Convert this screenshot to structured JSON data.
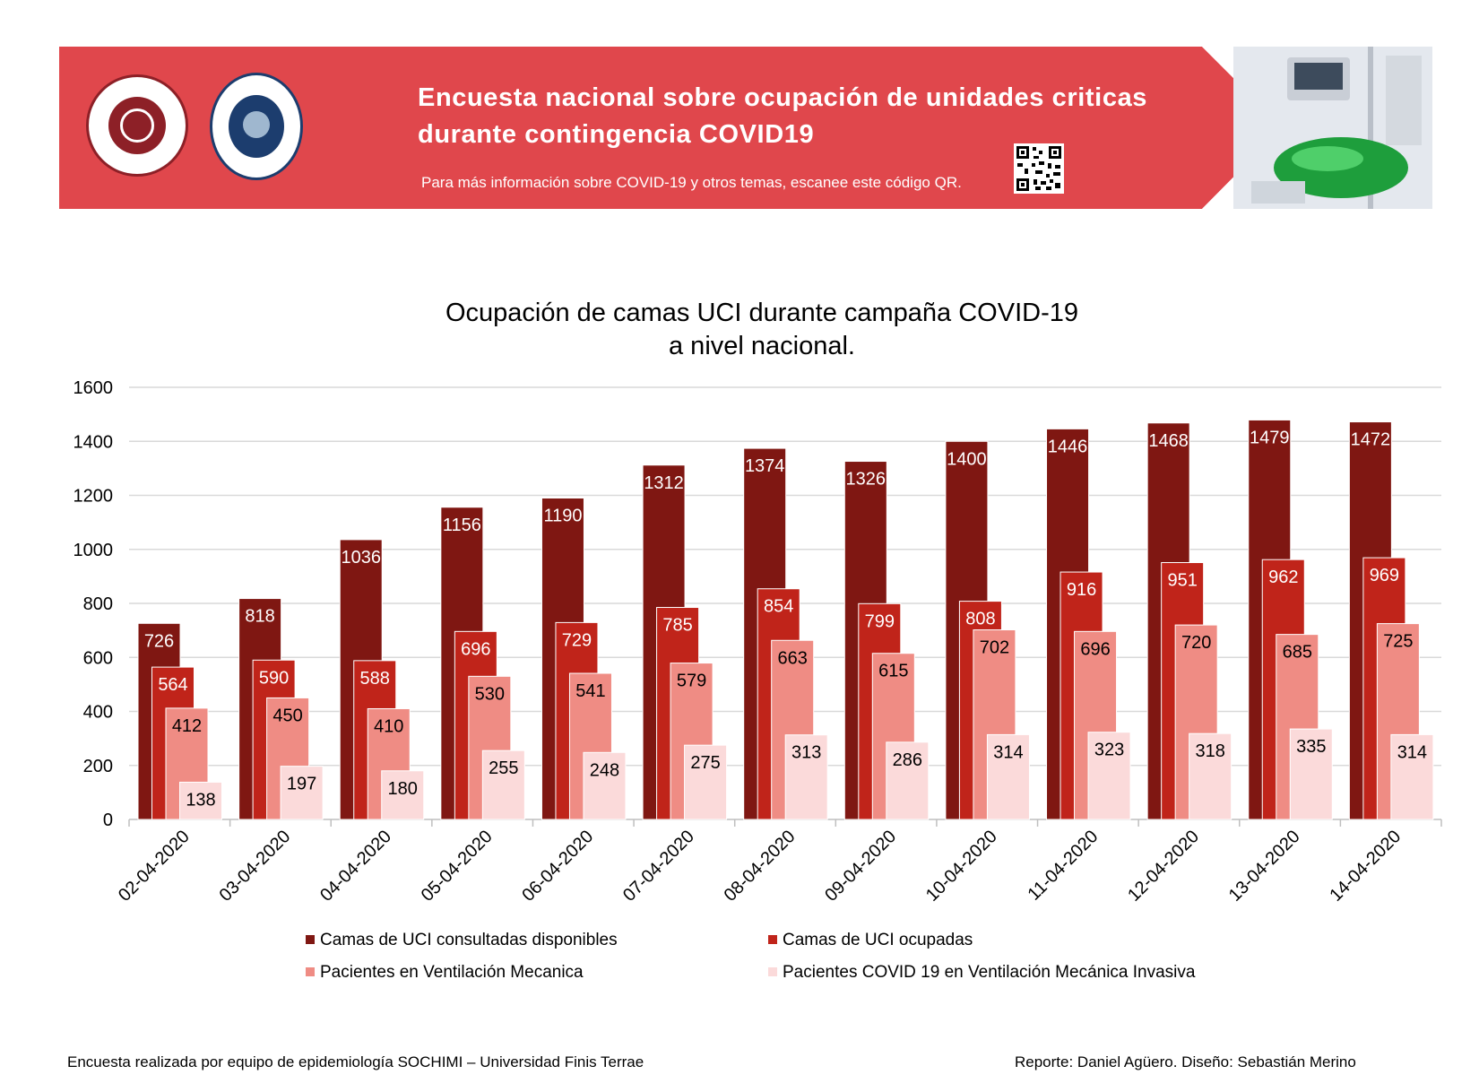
{
  "header": {
    "title_line1": "Encuesta nacional sobre ocupación de unidades criticas",
    "title_line2": "durante contingencia COVID19",
    "subtitle": "Para más información sobre COVID-19 y otros temas, escanee este código QR.",
    "color": "#e0474c"
  },
  "chart_data": {
    "type": "bar",
    "title": "Ocupación de camas UCI durante campaña COVID-19",
    "title_line2": "a nivel nacional.",
    "categories": [
      "02-04-2020",
      "03-04-2020",
      "04-04-2020",
      "05-04-2020",
      "06-04-2020",
      "07-04-2020",
      "08-04-2020",
      "09-04-2020",
      "10-04-2020",
      "11-04-2020",
      "12-04-2020",
      "13-04-2020",
      "14-04-2020"
    ],
    "ylim": [
      0,
      1600
    ],
    "yticks": [
      0,
      200,
      400,
      600,
      800,
      1000,
      1200,
      1400,
      1600
    ],
    "grid": true,
    "legend_position": "bottom",
    "series": [
      {
        "name": "Camas de UCI consultadas disponibles",
        "color": "#7f1712",
        "label_color": "#ffffff",
        "values": [
          726,
          818,
          1036,
          1156,
          1190,
          1312,
          1374,
          1326,
          1400,
          1446,
          1468,
          1479,
          1472
        ]
      },
      {
        "name": "Camas de UCI ocupadas",
        "color": "#c0241a",
        "label_color": "#ffffff",
        "values": [
          564,
          590,
          588,
          696,
          729,
          785,
          854,
          799,
          808,
          916,
          951,
          962,
          969
        ]
      },
      {
        "name": "Pacientes en Ventilación Mecanica",
        "color": "#ef8c84",
        "label_color": "#000000",
        "values": [
          412,
          450,
          410,
          530,
          541,
          579,
          663,
          615,
          702,
          696,
          720,
          685,
          725
        ]
      },
      {
        "name": "Pacientes COVID 19 en Ventilación Mecánica Invasiva",
        "color": "#fbdada",
        "label_color": "#000000",
        "values": [
          138,
          197,
          180,
          255,
          248,
          275,
          313,
          286,
          314,
          323,
          318,
          335,
          314
        ]
      }
    ]
  },
  "footer": {
    "left": "Encuesta realizada por equipo de epidemiología SOCHIMI – Universidad Finis Terrae",
    "right": "Reporte: Daniel Agüero. Diseño: Sebastián Merino"
  }
}
